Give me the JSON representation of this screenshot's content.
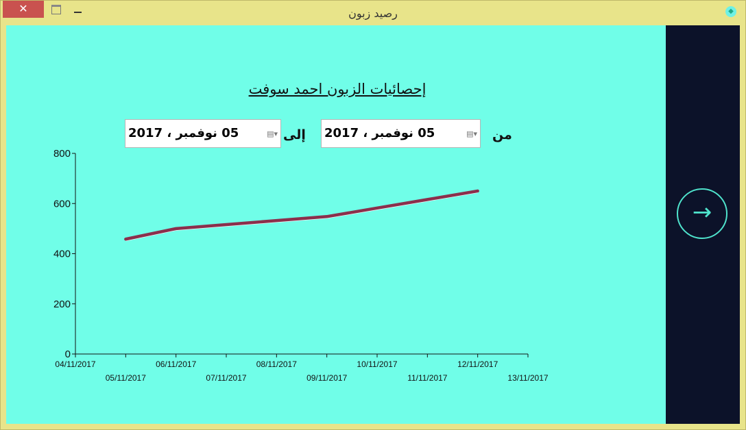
{
  "window": {
    "title": "رصيد زبون",
    "close_label": "✕"
  },
  "heading": "إحصائيات الزبون احمد سوفت",
  "filters": {
    "from_label": "من",
    "from_value": "05  نوفمبر ، 2017",
    "to_label": "إلى",
    "to_value": "05  نوفمبر ، 2017"
  },
  "side": {
    "next_icon": "arrow-right-circle-icon",
    "next_glyph": "→"
  },
  "colors": {
    "background": "#70fee8",
    "side_panel": "#0c1229",
    "line": "#8b2f4c",
    "titlebar": "#e8e48a"
  },
  "chart_data": {
    "type": "line",
    "x": [
      "05/11/2017",
      "06/11/2017",
      "07/11/2017",
      "08/11/2017",
      "09/11/2017",
      "10/11/2017",
      "11/11/2017",
      "12/11/2017"
    ],
    "series": [
      {
        "values": [
          458,
          500,
          516,
          532,
          548,
          582,
          616,
          650
        ]
      }
    ],
    "x_ticks": [
      "04/11/2017",
      "05/11/2017",
      "06/11/2017",
      "07/11/2017",
      "08/11/2017",
      "09/11/2017",
      "10/11/2017",
      "11/11/2017",
      "12/11/2017",
      "13/11/2017"
    ],
    "y_ticks": [
      "0",
      "200",
      "400",
      "600",
      "800"
    ],
    "ylim": [
      0,
      800
    ],
    "grid": false
  }
}
